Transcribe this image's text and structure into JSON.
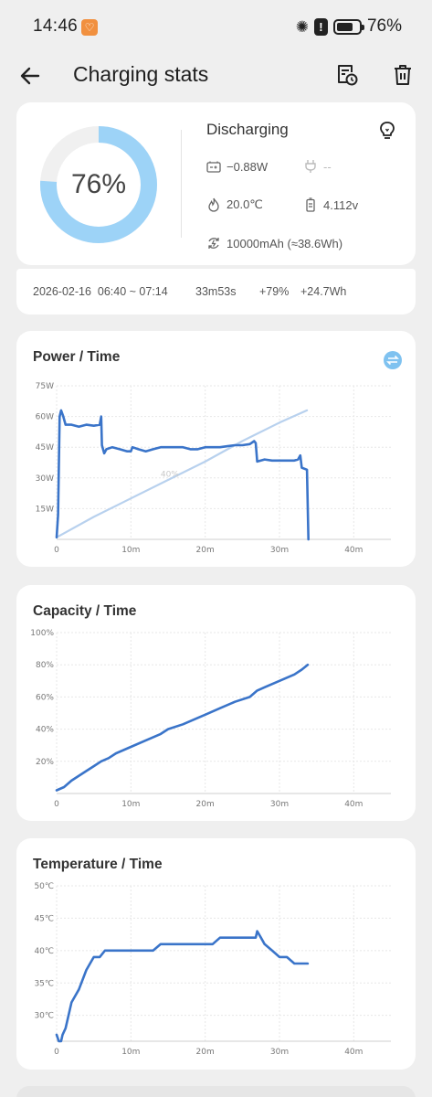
{
  "status_bar": {
    "time": "14:46",
    "battery": "76%",
    "battery_level": 0.76
  },
  "header": {
    "title": "Charging stats",
    "icons": [
      "back-arrow-icon",
      "history-icon",
      "trash-icon"
    ]
  },
  "summary": {
    "percent": "76%",
    "percent_value": 0.76,
    "ring_color": "#9dd3f7",
    "state": "Discharging",
    "power": "−0.88W",
    "charger": "--",
    "temperature": "20.0℃",
    "voltage": "4.112v",
    "capacity": "10000mAh (≈38.6Wh)"
  },
  "session": {
    "range": "2026-02-16  06:40 ~ 07:14",
    "duration": "33m53s",
    "gain_percent": "+79%",
    "gain_energy": "+24.7Wh"
  },
  "colors": {
    "series": "#3a74c9",
    "secondary": "#b8d1ee",
    "accent": "#9dd3f7"
  },
  "chart_data": [
    {
      "type": "line",
      "title": "Power / Time",
      "x_ticks": [
        "0",
        "10m",
        "20m",
        "30m",
        "40m"
      ],
      "y_ticks": [
        "15W",
        "30W",
        "45W",
        "60W",
        "75W"
      ],
      "xlim": [
        0,
        45
      ],
      "ylim": [
        0,
        75
      ],
      "inline_label": "40%",
      "series": [
        {
          "values": [
            [
              0,
              1
            ],
            [
              0.2,
              12
            ],
            [
              0.4,
              60
            ],
            [
              0.6,
              63
            ],
            [
              0.9,
              60
            ],
            [
              1.2,
              56
            ],
            [
              2,
              56
            ],
            [
              3,
              55
            ],
            [
              4,
              56
            ],
            [
              5,
              55.5
            ],
            [
              5.8,
              56
            ],
            [
              6,
              60
            ],
            [
              6.1,
              46
            ],
            [
              6.4,
              42
            ],
            [
              6.7,
              44
            ],
            [
              7.5,
              45
            ],
            [
              8.5,
              44
            ],
            [
              9.5,
              43
            ],
            [
              10,
              43
            ],
            [
              10.2,
              45
            ],
            [
              11,
              44
            ],
            [
              12,
              43
            ],
            [
              13,
              44
            ],
            [
              14,
              45
            ],
            [
              15,
              45
            ],
            [
              16,
              45
            ],
            [
              17,
              45
            ],
            [
              18,
              44
            ],
            [
              19,
              44
            ],
            [
              20,
              45
            ],
            [
              21,
              45
            ],
            [
              22,
              45
            ],
            [
              23,
              45.5
            ],
            [
              24,
              46
            ],
            [
              25,
              46
            ],
            [
              26,
              46.5
            ],
            [
              26.6,
              48
            ],
            [
              26.8,
              47
            ],
            [
              27,
              38
            ],
            [
              28,
              39
            ],
            [
              29,
              38.5
            ],
            [
              30,
              38.5
            ],
            [
              31,
              38.5
            ],
            [
              32,
              38.5
            ],
            [
              32.5,
              39
            ],
            [
              32.8,
              41
            ],
            [
              33,
              35
            ],
            [
              33.7,
              34
            ],
            [
              33.9,
              0
            ]
          ]
        },
        {
          "values": [
            [
              0,
              1
            ],
            [
              5,
              11
            ],
            [
              10,
              20
            ],
            [
              15,
              29
            ],
            [
              20,
              38
            ],
            [
              25,
              48
            ],
            [
              30,
              57
            ],
            [
              33.7,
              63
            ]
          ]
        }
      ]
    },
    {
      "type": "line",
      "title": "Capacity / Time",
      "x_ticks": [
        "0",
        "10m",
        "20m",
        "30m",
        "40m"
      ],
      "y_ticks": [
        "20%",
        "40%",
        "60%",
        "80%",
        "100%"
      ],
      "xlim": [
        0,
        45
      ],
      "ylim": [
        0,
        100
      ],
      "series": [
        {
          "values": [
            [
              0,
              2
            ],
            [
              1,
              4
            ],
            [
              2,
              8
            ],
            [
              3,
              11
            ],
            [
              4,
              14
            ],
            [
              5,
              17
            ],
            [
              6,
              20
            ],
            [
              7,
              22
            ],
            [
              8,
              25
            ],
            [
              10,
              29
            ],
            [
              12,
              33
            ],
            [
              14,
              37
            ],
            [
              15,
              40
            ],
            [
              17,
              43
            ],
            [
              19,
              47
            ],
            [
              20,
              49
            ],
            [
              22,
              53
            ],
            [
              24,
              57
            ],
            [
              26,
              60
            ],
            [
              27,
              64
            ],
            [
              28,
              66
            ],
            [
              30,
              70
            ],
            [
              32,
              74
            ],
            [
              33,
              77
            ],
            [
              33.8,
              80
            ]
          ]
        }
      ]
    },
    {
      "type": "line",
      "title": "Temperature / Time",
      "x_ticks": [
        "0",
        "10m",
        "20m",
        "30m",
        "40m"
      ],
      "y_ticks": [
        "30℃",
        "35℃",
        "40℃",
        "45℃",
        "50℃"
      ],
      "xlim": [
        0,
        45
      ],
      "ylim": [
        26,
        50
      ],
      "series": [
        {
          "values": [
            [
              0,
              27
            ],
            [
              0.3,
              26
            ],
            [
              0.6,
              26
            ],
            [
              0.8,
              27
            ],
            [
              1.2,
              28
            ],
            [
              2,
              32
            ],
            [
              3,
              34
            ],
            [
              4,
              37
            ],
            [
              4.5,
              38
            ],
            [
              5,
              39
            ],
            [
              5.8,
              39
            ],
            [
              6.5,
              40
            ],
            [
              7,
              40
            ],
            [
              13,
              40
            ],
            [
              14,
              41
            ],
            [
              20,
              41
            ],
            [
              21,
              41
            ],
            [
              22,
              42
            ],
            [
              24,
              42
            ],
            [
              26,
              42
            ],
            [
              26.8,
              42
            ],
            [
              27,
              43
            ],
            [
              27.5,
              42
            ],
            [
              28,
              41
            ],
            [
              29,
              40
            ],
            [
              30,
              39
            ],
            [
              31,
              39
            ],
            [
              32,
              38
            ],
            [
              33.8,
              38
            ]
          ]
        }
      ]
    }
  ]
}
